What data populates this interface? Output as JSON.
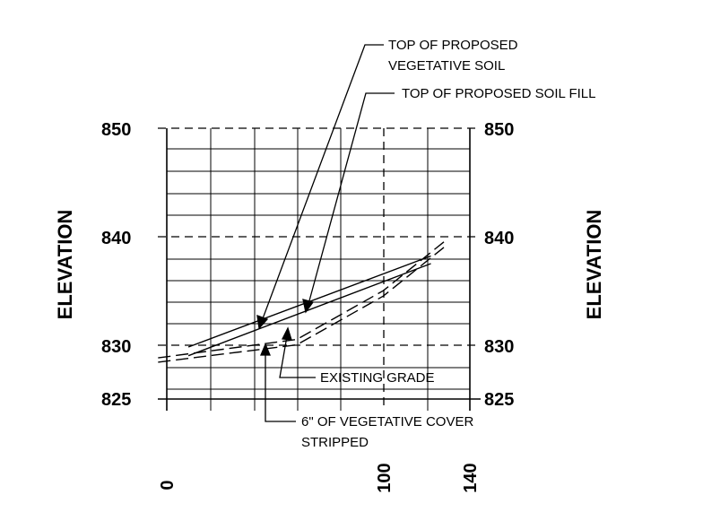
{
  "chart_data": {
    "type": "line",
    "ylabel_left": "ELEVATION",
    "ylabel_right": "ELEVATION",
    "ylim": [
      825,
      850
    ],
    "xlim": [
      0,
      140
    ],
    "y_ticks": [
      "825",
      "830",
      "840",
      "850"
    ],
    "x_ticks": [
      "0",
      "100",
      "140"
    ],
    "series": [
      {
        "name": "TOP OF PROPOSED VEGETATIVE SOIL",
        "style": "solid",
        "x": [
          10,
          122
        ],
        "y": [
          829.8,
          838.2
        ]
      },
      {
        "name": "TOP OF PROPOSED SOIL FILL",
        "style": "solid",
        "x": [
          10,
          122
        ],
        "y": [
          829.0,
          837.5
        ]
      },
      {
        "name": "EXISTING GRADE",
        "style": "dashed",
        "x": [
          -4,
          60,
          100,
          128
        ],
        "y": [
          828.8,
          830.5,
          835.0,
          839.5
        ]
      },
      {
        "name": "6\" OF VEGETATIVE COVER STRIPPED",
        "style": "dashed",
        "x": [
          -4,
          60,
          100,
          128
        ],
        "y": [
          828.4,
          830.0,
          834.5,
          839.0
        ]
      }
    ]
  },
  "annotations": {
    "veg_soil_line1": "TOP OF PROPOSED",
    "veg_soil_line2": "VEGETATIVE SOIL",
    "soil_fill": "TOP OF PROPOSED SOIL FILL",
    "existing_grade": "EXISTING GRADE",
    "stripped_line1": "6\" OF VEGETATIVE COVER",
    "stripped_line2": "STRIPPED"
  }
}
